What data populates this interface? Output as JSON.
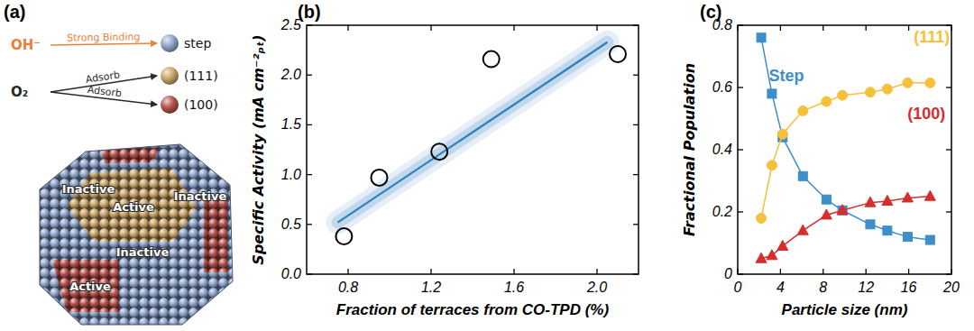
{
  "diagram": {
    "title": "(a)",
    "reactions": [
      {
        "species": "OH⁻",
        "color": "#e8823a",
        "arrows": [
          {
            "text": "Strong Binding",
            "target": "step"
          }
        ]
      },
      {
        "species": "O₂",
        "color": "#2a2a2a",
        "arrows": [
          {
            "text": "Adsorb",
            "target": "(111)"
          },
          {
            "text": "Adsorb",
            "target": "(100)"
          }
        ]
      }
    ],
    "sites": [
      {
        "label": "step",
        "color": "#8fa5cc"
      },
      {
        "label": "(111)",
        "color": "#c7a46a"
      },
      {
        "label": "(100)",
        "color": "#b4524c"
      }
    ],
    "facet_labels": [
      "Inactive",
      "Active",
      "Inactive",
      "Inactive",
      "Active"
    ]
  },
  "chart_data": [
    {
      "type": "scatter",
      "title": "(b)",
      "x_label": "Fraction of terraces from CO-TPD (%)",
      "y_label": "Specific Activity (mA cm⁻²ₚₜ)",
      "xlim": [
        0.6,
        2.2
      ],
      "xticks": [
        0.8,
        1.2,
        1.6,
        {
          "value": 2,
          "label": "2.0"
        }
      ],
      "ylim": [
        0,
        2.5
      ],
      "yticks": [
        {
          "value": 0,
          "label": "0.0"
        },
        0.5,
        {
          "value": 1,
          "label": "1.0"
        },
        1.5,
        {
          "value": 2,
          "label": "2.0"
        },
        2.5
      ],
      "series": [
        {
          "type": "scatter",
          "marker": "circle",
          "color": "#000000",
          "x": [
            0.78,
            0.95,
            1.24,
            1.49,
            2.1
          ],
          "values": [
            0.38,
            0.97,
            1.23,
            2.16,
            2.21
          ]
        },
        {
          "type": "line",
          "line_style": "solid",
          "color": "#2f7fc0",
          "x": [
            0.75,
            2.05
          ],
          "values": [
            0.52,
            2.33
          ]
        }
      ]
    },
    {
      "type": "line",
      "title": "(c)",
      "x_label": "Particle size (nm)",
      "y_label": "Fractional Population",
      "xlim": [
        0,
        20
      ],
      "xticks": [
        0,
        4,
        8,
        12,
        16,
        20
      ],
      "ylim": [
        0,
        0.8
      ],
      "yticks": [
        0,
        0.2,
        0.4,
        0.6,
        0.8
      ],
      "x": [
        2.2,
        3.2,
        4.2,
        6.1,
        8.3,
        9.8,
        12.4,
        14,
        15.9,
        18
      ],
      "series": [
        {
          "name": "Step",
          "color": "#3d8ec9",
          "marker": "square",
          "values": [
            0.76,
            0.58,
            0.44,
            0.315,
            0.24,
            0.205,
            0.16,
            0.14,
            0.12,
            0.11
          ]
        },
        {
          "name": "(111)",
          "color": "#f5c03a",
          "marker": "circle",
          "values": [
            0.18,
            0.35,
            0.45,
            0.525,
            0.555,
            0.575,
            0.585,
            0.595,
            0.615,
            0.615
          ]
        },
        {
          "name": "(100)",
          "color": "#d62d2d",
          "marker": "triangle",
          "values": [
            0.05,
            0.06,
            0.09,
            0.14,
            0.19,
            0.205,
            0.23,
            0.235,
            0.245,
            0.25
          ]
        }
      ]
    }
  ]
}
